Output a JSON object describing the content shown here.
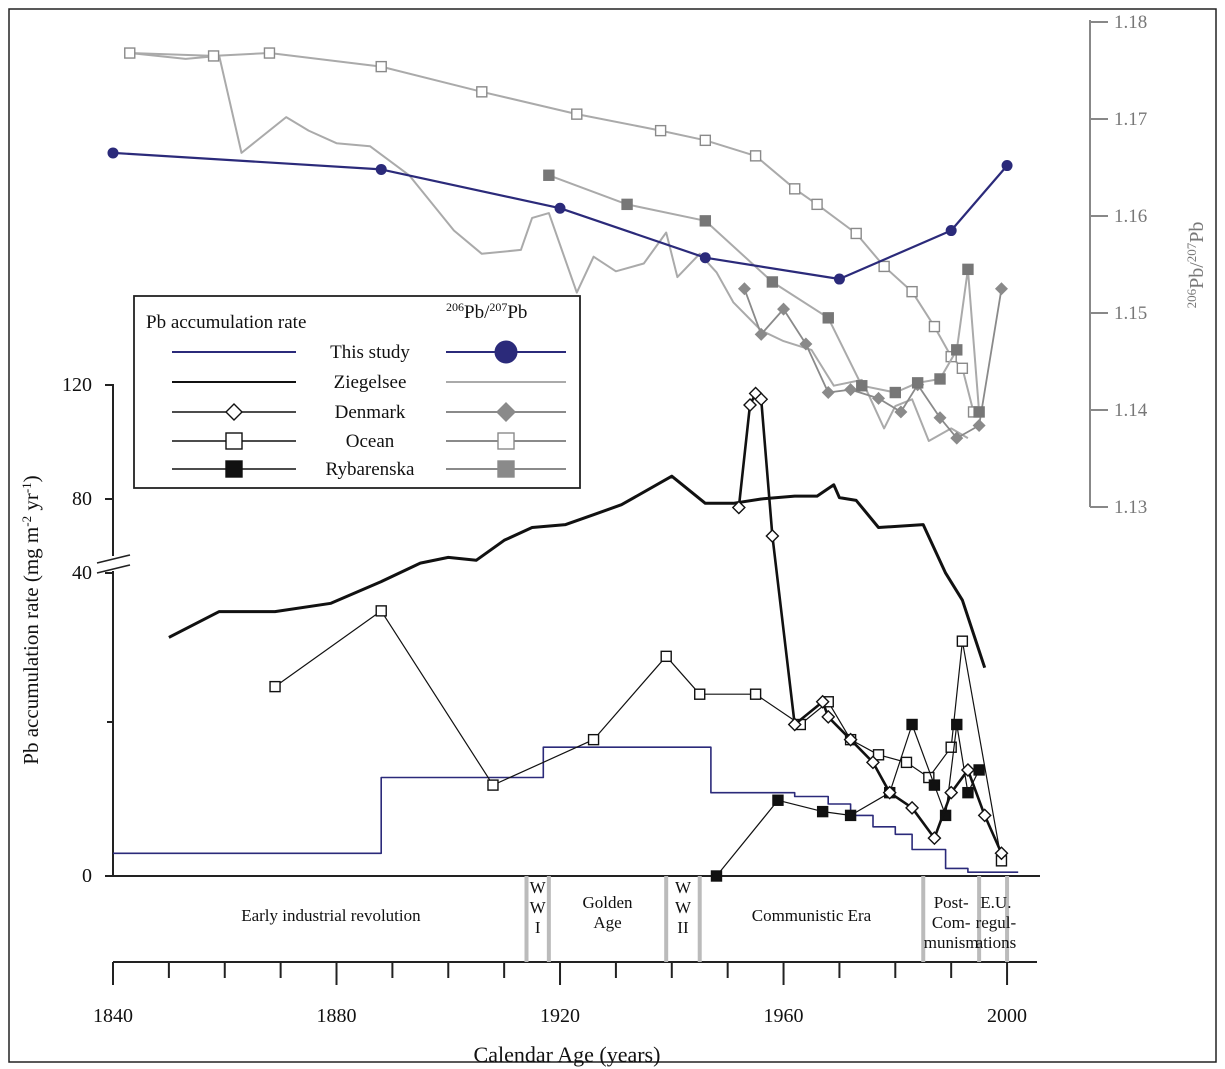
{
  "chart_data": {
    "type": "line",
    "xlabel": "Calendar Age (years)",
    "ylabel_left": "Pb accumulation rate (mg m",
    "ylabel_left_sup1": "-2",
    "ylabel_left_mid": " yr",
    "ylabel_left_sup2": "-1",
    "ylabel_left_end": ")",
    "ylabel_right_sup1": "206",
    "ylabel_right_pb1": "Pb/",
    "ylabel_right_sup2": "207",
    "ylabel_right_pb2": "Pb",
    "x_ticks": [
      "1840",
      "1880",
      "1920",
      "1960",
      "2000"
    ],
    "xlim": [
      1840,
      2005
    ],
    "left_ticks": [
      "0",
      "40",
      "80",
      "120"
    ],
    "right_ticks": [
      "1.13",
      "1.14",
      "1.15",
      "1.16",
      "1.17",
      "1.18"
    ],
    "ylim_right": [
      1.13,
      1.18
    ],
    "legend": {
      "header_left": "Pb accumulation rate",
      "header_right_sup1": "206",
      "header_right_mid": "Pb/",
      "header_right_sup2": "207",
      "header_right_end": "Pb",
      "entries": [
        "This study",
        "Ziegelsee",
        "Denmark",
        "Ocean",
        "Rybarenska"
      ]
    },
    "eras": [
      {
        "label": [
          "Early industrial revolution"
        ]
      },
      {
        "label": [
          "W",
          "W",
          "I"
        ]
      },
      {
        "label": [
          "Golden",
          "Age"
        ]
      },
      {
        "label": [
          "W",
          "W",
          "II"
        ]
      },
      {
        "label": [
          "Communistic Era"
        ]
      },
      {
        "label": [
          "Post-",
          "Com-",
          "munism"
        ]
      },
      {
        "label": [
          "E.U.",
          "regul-",
          "ations"
        ]
      }
    ],
    "colors": {
      "this_study": "#2b2a7a",
      "black": "#111111",
      "gray_light": "#aaaaaa",
      "gray_mid": "#8a8a8a",
      "gray_dark": "#777777",
      "era_divider": "#bbbbbb"
    },
    "pb_series": {
      "this_study": {
        "x": [
          1840,
          1888,
          1920,
          1946,
          1970,
          1990,
          2000
        ],
        "y": [
          108.5,
          107.0,
          102.5,
          96.5,
          91.5,
          99.5,
          109.5
        ]
      },
      "ziegelsee": {
        "x": [
          1850,
          1859,
          1869,
          1879,
          1888,
          1895,
          1900,
          1905,
          1910,
          1915,
          1921,
          1926,
          1931,
          1940,
          1946,
          1951,
          1956,
          1962,
          1966,
          1969,
          1970,
          1973,
          1977,
          1985,
          1989,
          1992,
          1996
        ],
        "y": [
          31.5,
          40.5,
          40.5,
          36,
          51,
          57.5,
          59.5,
          58.5,
          65.5,
          70,
          71,
          74.5,
          78,
          88,
          78.5,
          78.5,
          80,
          81,
          81,
          85,
          80.5,
          79.5,
          70,
          71,
          54,
          44.5,
          27.5
        ]
      },
      "denmark": {
        "x": [
          1952,
          1954,
          1955,
          1956,
          1958,
          1962,
          1967,
          1968,
          1972,
          1976,
          1979,
          1983,
          1987,
          1990,
          1993,
          1996,
          1999
        ],
        "y": [
          77,
          113,
          117,
          115,
          67,
          20,
          23,
          21,
          18,
          15,
          11,
          9,
          5,
          11,
          14,
          8,
          3
        ]
      },
      "ocean": {
        "x": [
          1869,
          1888,
          1908,
          1926,
          1939,
          1945,
          1955,
          1963,
          1968,
          1972,
          1977,
          1982,
          1986,
          1990,
          1992,
          1999
        ],
        "y": [
          25,
          35,
          12,
          18,
          29,
          24,
          24,
          20,
          23,
          18,
          16,
          15,
          13,
          17,
          31,
          2
        ]
      },
      "rybarenska": {
        "x": [
          1948,
          1959,
          1967,
          1972,
          1979,
          1983,
          1987,
          1989,
          1991,
          1993,
          1995
        ],
        "y": [
          0,
          10,
          8.5,
          8,
          11,
          20,
          12,
          8,
          20,
          11,
          14
        ]
      }
    },
    "pb_steps": {
      "x": [
        1840,
        1888,
        1888,
        1917,
        1917,
        1947,
        1947,
        1962,
        1962,
        1968,
        1968,
        1972,
        1972,
        1976,
        1976,
        1980,
        1980,
        1983,
        1983,
        1989,
        1989,
        1993,
        1993,
        2002
      ],
      "y": [
        3,
        3,
        13,
        13,
        17,
        17,
        11,
        11,
        10.5,
        10.5,
        9.5,
        9.5,
        8,
        8,
        6.5,
        6.5,
        5.5,
        5.5,
        3.5,
        3.5,
        1,
        1,
        0.5,
        0.5
      ]
    },
    "ratio_series": {
      "this_study": {
        "x": [
          1840,
          1888,
          1920,
          1946,
          1970,
          1990,
          2000
        ],
        "y": [
          1.1665,
          1.1648,
          1.1608,
          1.1557,
          1.1535,
          1.1585,
          1.1652
        ]
      },
      "ziegelsee": {
        "x": [
          1843,
          1853,
          1859,
          1863,
          1871,
          1875,
          1880,
          1886,
          1893,
          1901,
          1906,
          1913,
          1915,
          1918,
          1923,
          1926,
          1930,
          1935,
          1939,
          1941,
          1945,
          1948,
          1951,
          1956,
          1960,
          1965,
          1969,
          1974,
          1978,
          1980,
          1983,
          1986,
          1990,
          1993
        ],
        "y": [
          1.1768,
          1.1762,
          1.1765,
          1.1665,
          1.1702,
          1.1688,
          1.1675,
          1.1672,
          1.1642,
          1.1585,
          1.1561,
          1.1565,
          1.1598,
          1.1603,
          1.1521,
          1.1558,
          1.1543,
          1.1551,
          1.1583,
          1.1537,
          1.1561,
          1.1542,
          1.1511,
          1.1482,
          1.1471,
          1.1462,
          1.1425,
          1.1431,
          1.1381,
          1.1404,
          1.1411,
          1.1368,
          1.1381,
          1.1371
        ]
      },
      "denmark": {
        "x": [
          1953,
          1956,
          1960,
          1964,
          1968,
          1972,
          1977,
          1981,
          1984,
          1988,
          1991,
          1995,
          1999
        ],
        "y": [
          1.1525,
          1.1478,
          1.1504,
          1.1468,
          1.1418,
          1.1421,
          1.1412,
          1.1398,
          1.1426,
          1.1392,
          1.1371,
          1.1384,
          1.1525
        ]
      },
      "ocean": {
        "x": [
          1843,
          1858,
          1868,
          1888,
          1906,
          1923,
          1938,
          1946,
          1955,
          1962,
          1966,
          1973,
          1978,
          1983,
          1987,
          1990,
          1992,
          1994
        ],
        "y": [
          1.1768,
          1.1765,
          1.1768,
          1.1754,
          1.1728,
          1.1705,
          1.1688,
          1.1678,
          1.1662,
          1.1628,
          1.1612,
          1.1582,
          1.1548,
          1.1522,
          1.1486,
          1.1455,
          1.1443,
          1.1398
        ]
      },
      "rybarenska": {
        "x": [
          1918,
          1932,
          1946,
          1958,
          1968,
          1974,
          1980,
          1984,
          1988,
          1991,
          1993,
          1995
        ],
        "y": [
          1.1642,
          1.1612,
          1.1595,
          1.1532,
          1.1495,
          1.1425,
          1.1418,
          1.1428,
          1.1432,
          1.1462,
          1.1545,
          1.1398
        ]
      }
    }
  }
}
